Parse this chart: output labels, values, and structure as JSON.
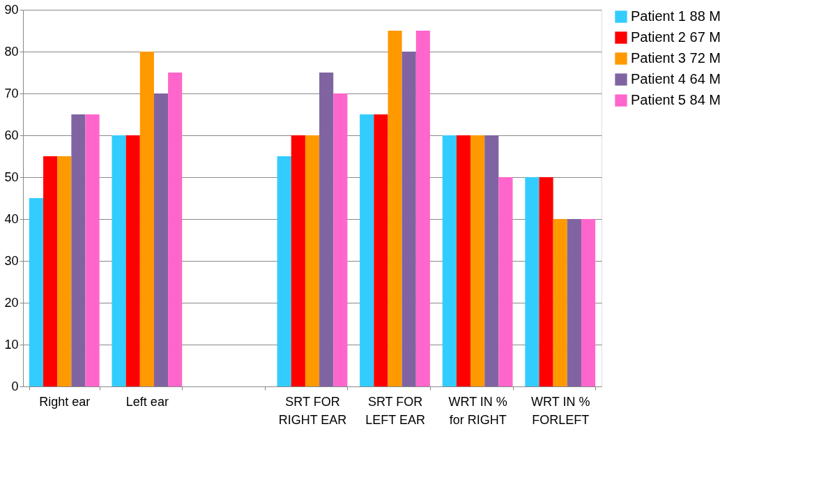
{
  "chart_data": {
    "type": "bar",
    "categories": [
      "Right ear",
      "Left ear",
      null,
      "SRT FOR\nRIGHT EAR",
      "SRT FOR\nLEFT EAR",
      "WRT IN %\nfor RIGHT",
      "WRT IN %\nFORLEFT"
    ],
    "series": [
      {
        "name": "Patient 1 88 M",
        "color": "#33ccff",
        "values": [
          45,
          60,
          null,
          55,
          65,
          60,
          50
        ]
      },
      {
        "name": "Patient 2 67 M",
        "color": "#ff0000",
        "values": [
          55,
          60,
          null,
          60,
          65,
          60,
          50
        ]
      },
      {
        "name": "Patient 3 72 M",
        "color": "#ff9900",
        "values": [
          55,
          80,
          null,
          60,
          85,
          60,
          40
        ]
      },
      {
        "name": "Patient 4 64 M",
        "color": "#8064a2",
        "values": [
          65,
          70,
          null,
          75,
          80,
          60,
          40
        ]
      },
      {
        "name": "Patient 5 84 M",
        "color": "#ff66cc",
        "values": [
          65,
          75,
          null,
          70,
          85,
          50,
          40
        ]
      }
    ],
    "ylim": [
      0,
      90
    ],
    "yticks": [
      0,
      10,
      20,
      30,
      40,
      50,
      60,
      70,
      80,
      90
    ],
    "grid": "y",
    "legend": "right"
  }
}
